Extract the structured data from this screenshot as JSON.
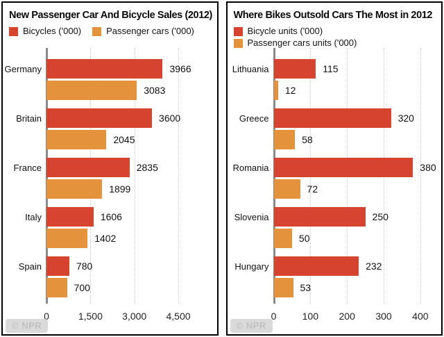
{
  "colors": {
    "bicycle_red": "#d6432e",
    "car_orange": "#e5923c",
    "axis_gray": "#8a8a8a",
    "gridline_gray": "#c8c8c8",
    "panel_border": "#000000",
    "watermark_bg": "#dadada",
    "watermark_text": "#c2c2c2"
  },
  "chart_data": [
    {
      "type": "bar",
      "orientation": "horizontal",
      "title": "New Passenger Car And Bicycle Sales (2012)",
      "legend_layout": "row",
      "categories": [
        "Germany",
        "Britain",
        "France",
        "Italy",
        "Spain"
      ],
      "series": [
        {
          "name": "Bicycles ('000)",
          "color": "#d6432e",
          "values": [
            3966,
            3600,
            2835,
            1606,
            780
          ]
        },
        {
          "name": "Passenger cars ('000)",
          "color": "#e5923c",
          "values": [
            3083,
            2045,
            1899,
            1402,
            700
          ]
        }
      ],
      "xlabel": "",
      "ylabel": "",
      "xlim": [
        0,
        5600
      ],
      "grid": "dotted-vertical",
      "ticks": [
        {
          "value": 0,
          "label": "0"
        },
        {
          "value": 1500,
          "label": "1,500"
        },
        {
          "value": 3000,
          "label": "3,000"
        },
        {
          "value": 4500,
          "label": "4,500"
        }
      ],
      "watermark": "© NPR"
    },
    {
      "type": "bar",
      "orientation": "horizontal",
      "title": "Where Bikes Outsold Cars The Most in 2012",
      "legend_layout": "column",
      "categories": [
        "Lithuania",
        "Greece",
        "Romania",
        "Slovenia",
        "Hungary"
      ],
      "series": [
        {
          "name": "Bicycle units ('000)",
          "color": "#d6432e",
          "values": [
            115,
            320,
            380,
            250,
            232
          ]
        },
        {
          "name": "Passenger cars units ('000)",
          "color": "#e5923c",
          "values": [
            12,
            58,
            72,
            50,
            53
          ]
        }
      ],
      "xlabel": "",
      "ylabel": "",
      "xlim": [
        0,
        440
      ],
      "grid": "dotted-vertical",
      "ticks": [
        {
          "value": 0,
          "label": "0"
        },
        {
          "value": 100,
          "label": "100"
        },
        {
          "value": 200,
          "label": "200"
        },
        {
          "value": 300,
          "label": "300"
        },
        {
          "value": 400,
          "label": "400"
        }
      ],
      "watermark": "© NPR"
    }
  ]
}
